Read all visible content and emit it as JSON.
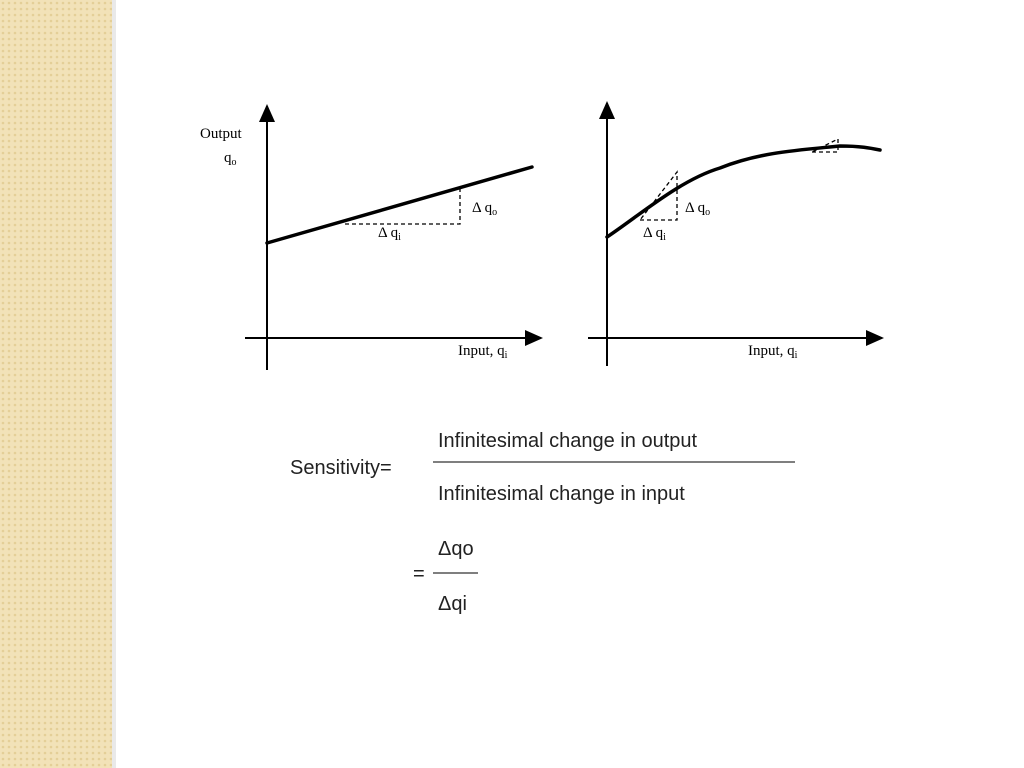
{
  "left_graph": {
    "y_label": "Output",
    "y_symbol": {
      "base": "q",
      "sub": "o"
    },
    "delta_out": {
      "base": "Δ q",
      "sub": "o"
    },
    "delta_in": {
      "base": "Δ q",
      "sub": "i"
    },
    "x_label": {
      "base": "Input, q",
      "sub": "i"
    }
  },
  "right_graph": {
    "delta_out": {
      "base": "Δ q",
      "sub": "o"
    },
    "delta_in": {
      "base": "Δ q",
      "sub": "i"
    },
    "x_label": {
      "base": "Input, q",
      "sub": "i"
    }
  },
  "formula": {
    "lhs": "Sensitivity=",
    "numerator": "Infinitesimal change in output",
    "denominator": "Infinitesimal change in input",
    "equals": "=",
    "short_numerator": "Δqo",
    "short_denominator": "Δqi"
  }
}
